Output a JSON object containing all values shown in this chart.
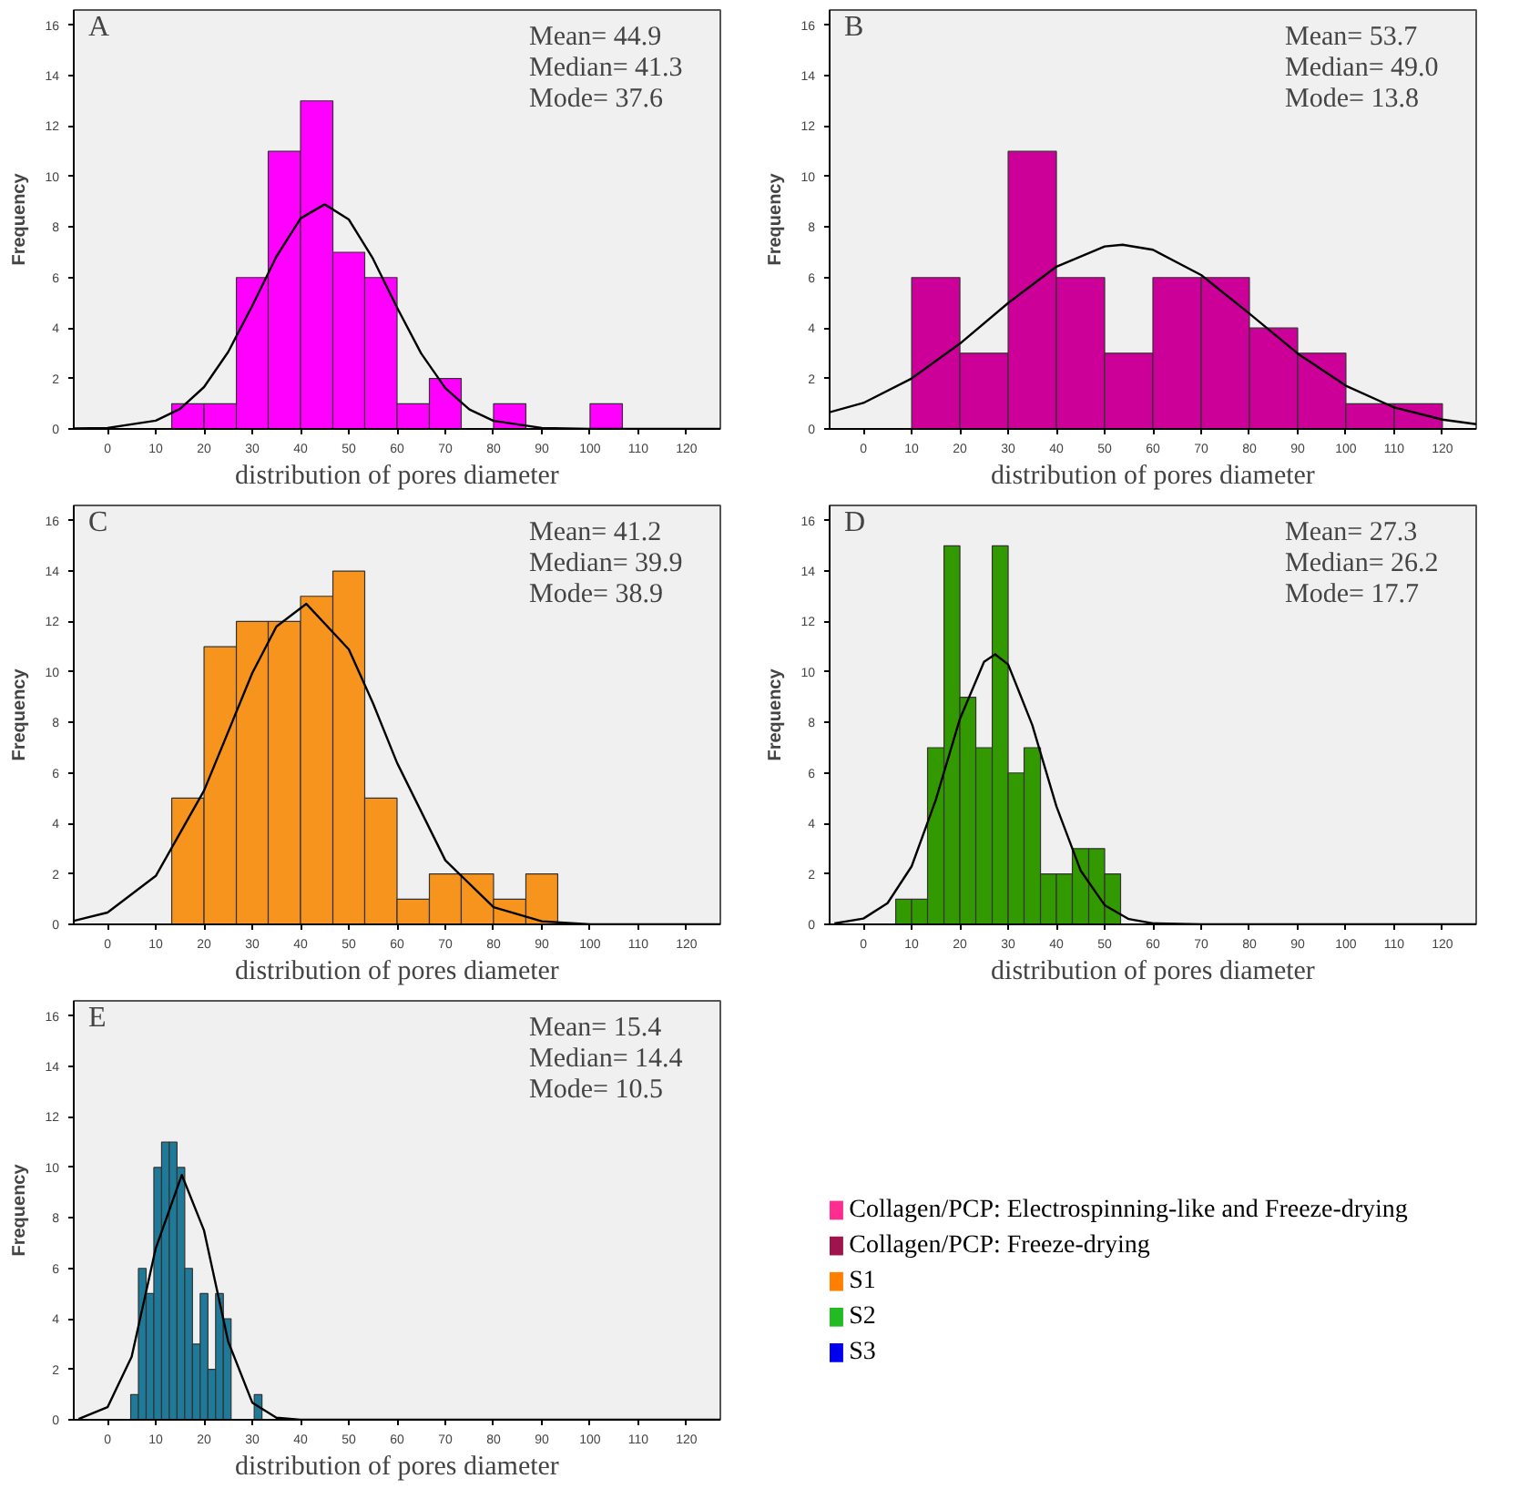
{
  "chart_data": [
    {
      "type": "histogram",
      "title": "A",
      "xlabel": "distribution of pores diameter",
      "ylabel": "Frequency",
      "color": "#ff00ff",
      "bins": [
        13.3,
        20,
        26.7,
        33.3,
        40,
        46.7,
        53.3,
        60,
        66.7,
        73.3,
        80,
        86.7,
        100,
        106.7
      ],
      "values": [
        1,
        1,
        6,
        11,
        13,
        7,
        6,
        1,
        2,
        0,
        1,
        0,
        1
      ],
      "series": [
        {
          "type": "line",
          "color": "#000000",
          "x": [
            -7,
            0,
            10,
            15,
            20,
            25,
            30,
            35,
            40,
            45,
            50,
            55,
            60,
            65,
            70,
            75,
            80,
            90,
            100,
            127
          ],
          "values": [
            0.02,
            0.04,
            0.33,
            0.79,
            1.66,
            3.05,
            4.88,
            6.83,
            8.34,
            8.9,
            8.3,
            6.75,
            4.81,
            2.99,
            1.62,
            0.77,
            0.32,
            0.04,
            0,
            0
          ]
        }
      ],
      "xlim": [
        -7,
        127
      ],
      "ylim": [
        0,
        16.6
      ],
      "xticks": [
        0,
        10,
        20,
        30,
        40,
        50,
        60,
        70,
        80,
        90,
        100,
        110,
        120
      ],
      "yticks": [
        0,
        2,
        4,
        6,
        8,
        10,
        12,
        14,
        16
      ],
      "grid": false,
      "annotations": [
        "Mean= 44.9",
        "Median= 41.3",
        "Mode= 37.6"
      ]
    },
    {
      "type": "histogram",
      "title": "B",
      "xlabel": "distribution of pores diameter",
      "ylabel": "Frequency",
      "color": "#cc0099",
      "bins": [
        10,
        20,
        30,
        40,
        50,
        60,
        70,
        80,
        90,
        100,
        110,
        120
      ],
      "values": [
        6,
        3,
        11,
        6,
        3,
        6,
        6,
        4,
        3,
        1,
        1
      ],
      "series": [
        {
          "type": "line",
          "color": "#000000",
          "x": [
            -7,
            0,
            10,
            20,
            30,
            40,
            50,
            53.7,
            60,
            70,
            80,
            90,
            100,
            110,
            120,
            127
          ],
          "values": [
            0.66,
            1.03,
            2.0,
            3.38,
            4.99,
            6.43,
            7.23,
            7.3,
            7.1,
            6.1,
            4.57,
            2.99,
            1.71,
            0.85,
            0.37,
            0.19
          ]
        }
      ],
      "xlim": [
        -7,
        127
      ],
      "ylim": [
        0,
        16.6
      ],
      "xticks": [
        0,
        10,
        20,
        30,
        40,
        50,
        60,
        70,
        80,
        90,
        100,
        110,
        120
      ],
      "yticks": [
        0,
        2,
        4,
        6,
        8,
        10,
        12,
        14,
        16
      ],
      "grid": false,
      "annotations": [
        "Mean= 53.7",
        "Median= 49.0",
        "Mode= 13.8"
      ]
    },
    {
      "type": "histogram",
      "title": "C",
      "xlabel": "distribution of pores diameter",
      "ylabel": "Frequency",
      "color": "#f7941d",
      "bins": [
        13.3,
        20,
        26.7,
        33.3,
        40,
        46.7,
        53.3,
        60,
        66.7,
        73.3,
        80,
        86.7,
        93.3
      ],
      "values": [
        5,
        11,
        12,
        12,
        13,
        14,
        5,
        1,
        2,
        2,
        1,
        2
      ],
      "series": [
        {
          "type": "line",
          "color": "#000000",
          "x": [
            -7,
            0,
            10,
            20,
            30,
            35,
            41.2,
            50,
            55,
            60,
            70,
            80,
            90,
            100,
            127
          ],
          "values": [
            0.14,
            0.47,
            1.92,
            5.3,
            9.96,
            11.8,
            12.7,
            10.9,
            8.77,
            6.4,
            2.54,
            0.68,
            0.12,
            0,
            0
          ]
        }
      ],
      "xlim": [
        -7,
        127
      ],
      "ylim": [
        0,
        16.6
      ],
      "xticks": [
        0,
        10,
        20,
        30,
        40,
        50,
        60,
        70,
        80,
        90,
        100,
        110,
        120
      ],
      "yticks": [
        0,
        2,
        4,
        6,
        8,
        10,
        12,
        14,
        16
      ],
      "grid": false,
      "annotations": [
        "Mean= 41.2",
        "Median= 39.9",
        "Mode= 38.9"
      ]
    },
    {
      "type": "histogram",
      "title": "D",
      "xlabel": "distribution of pores diameter",
      "ylabel": "Frequency",
      "color": "#339900",
      "bins": [
        6.7,
        10,
        13.3,
        16.7,
        20,
        23.3,
        26.7,
        30,
        33.3,
        36.7,
        40,
        43.3,
        46.7,
        50,
        53.3
      ],
      "values": [
        1,
        1,
        7,
        15,
        9,
        7,
        15,
        6,
        7,
        2,
        2,
        3,
        3,
        2
      ],
      "series": [
        {
          "type": "line",
          "color": "#000000",
          "x": [
            -6,
            0,
            5,
            10,
            15,
            20,
            25,
            27.3,
            30,
            35,
            40,
            45,
            50,
            55,
            60,
            70,
            127
          ],
          "values": [
            0.04,
            0.23,
            0.84,
            2.3,
            4.93,
            8.14,
            10.4,
            10.7,
            10.3,
            7.9,
            4.68,
            2.14,
            0.76,
            0.21,
            0.04,
            0,
            0
          ]
        }
      ],
      "xlim": [
        -7,
        127
      ],
      "ylim": [
        0,
        16.6
      ],
      "xticks": [
        0,
        10,
        20,
        30,
        40,
        50,
        60,
        70,
        80,
        90,
        100,
        110,
        120
      ],
      "yticks": [
        0,
        2,
        4,
        6,
        8,
        10,
        12,
        14,
        16
      ],
      "grid": false,
      "annotations": [
        "Mean= 27.3",
        "Median= 26.2",
        "Mode= 17.7"
      ]
    },
    {
      "type": "histogram",
      "title": "E",
      "xlabel": "distribution of pores diameter",
      "ylabel": "Frequency",
      "color": "#1f7a99",
      "bins": [
        4.8,
        6.4,
        8.0,
        9.6,
        11.2,
        12.8,
        14.4,
        16.0,
        17.6,
        19.2,
        20.8,
        22.4,
        24.0,
        25.6,
        30.4,
        32.0
      ],
      "values": [
        1,
        6,
        5,
        10,
        11,
        11,
        10,
        6,
        3,
        5,
        2,
        5,
        4,
        0,
        1
      ],
      "series": [
        {
          "type": "line",
          "color": "#000000",
          "x": [
            -6,
            0,
            5,
            10,
            15.4,
            20,
            25,
            30,
            35,
            40,
            127
          ],
          "values": [
            0.03,
            0.5,
            2.5,
            6.8,
            9.7,
            7.5,
            3.1,
            0.68,
            0.08,
            0,
            0
          ]
        }
      ],
      "xlim": [
        -7,
        127
      ],
      "ylim": [
        0,
        16.6
      ],
      "xticks": [
        0,
        10,
        20,
        30,
        40,
        50,
        60,
        70,
        80,
        90,
        100,
        110,
        120
      ],
      "yticks": [
        0,
        2,
        4,
        6,
        8,
        10,
        12,
        14,
        16
      ],
      "grid": false,
      "annotations": [
        "Mean= 15.4",
        "Median= 14.4",
        "Mode= 10.5"
      ]
    },
    {
      "type": "other",
      "categories": [
        "Collagen/PCP: Electrospinning-like and Freeze-drying",
        "Collagen/PCP: Freeze-drying",
        "S1",
        "S2",
        "S3"
      ],
      "colors": [
        "#ff2d8f",
        "#a0144e",
        "#ff8000",
        "#22bb22",
        "#0000ee"
      ]
    }
  ]
}
